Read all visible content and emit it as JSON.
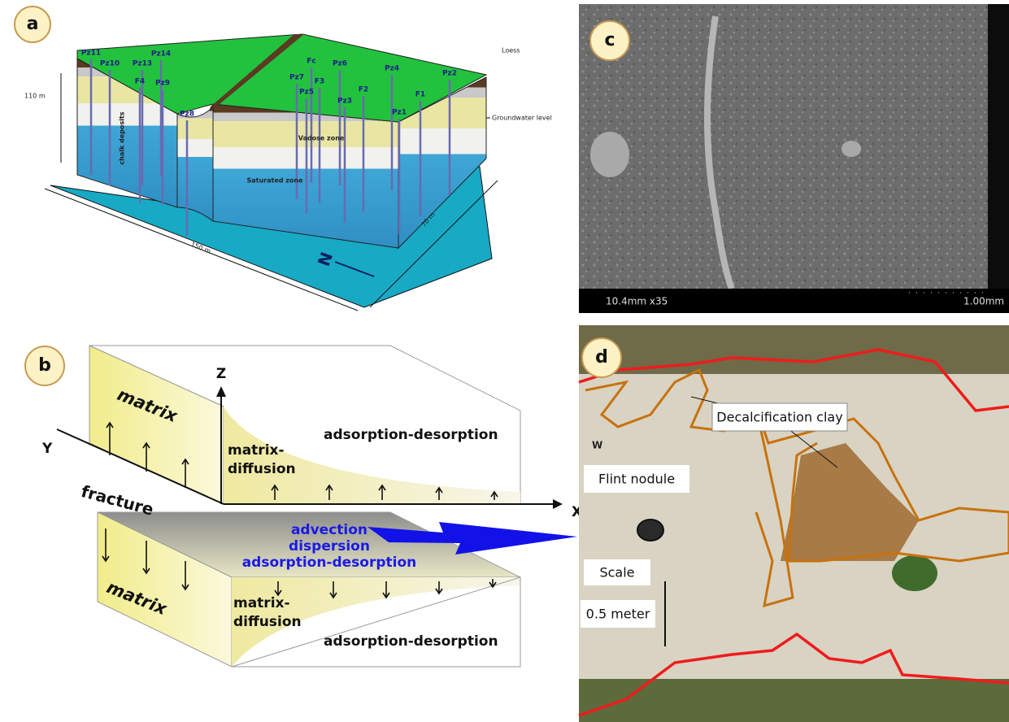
{
  "panels": {
    "a": {
      "label": "a",
      "wells": [
        "Pz11",
        "Pz10",
        "Pz13",
        "Pz14",
        "F4",
        "Pz9",
        "Pz8",
        "Fc",
        "Pz6",
        "Pz4",
        "Pz2",
        "Pz7",
        "F3",
        "F2",
        "Pz5",
        "Pz3",
        "Pz1",
        "F1"
      ],
      "loess": "Loess",
      "groundwater": "Groundwater level",
      "height": "110 m",
      "chalk": "chalk deposits",
      "vadose": "Vadose zone",
      "saturated": "Saturated zone",
      "length": "150 m",
      "width": "70 m",
      "north": "N"
    },
    "b": {
      "label": "b",
      "matrix_top": "matrix",
      "axis_z": "Z",
      "axis_y": "Y",
      "axis_x": "X",
      "sorption_top": "adsorption-desorption",
      "diffusion_top": [
        "matrix-",
        "diffusion"
      ],
      "fracture": "fracture",
      "transport": [
        "advection",
        "dispersion",
        "adsorption-desorption"
      ],
      "matrix_bottom": "matrix",
      "diffusion_bottom": [
        "matrix-",
        "diffusion"
      ],
      "sorption_bottom": "adsorption-desorption"
    },
    "c": {
      "label": "c",
      "info": "10.4mm x35",
      "scale": "1.00mm"
    },
    "d": {
      "label": "d",
      "clay": "Decalcification clay",
      "flint": "Flint nodule",
      "scale": "Scale",
      "scale_value": "0.5 meter",
      "direction": "W"
    }
  }
}
